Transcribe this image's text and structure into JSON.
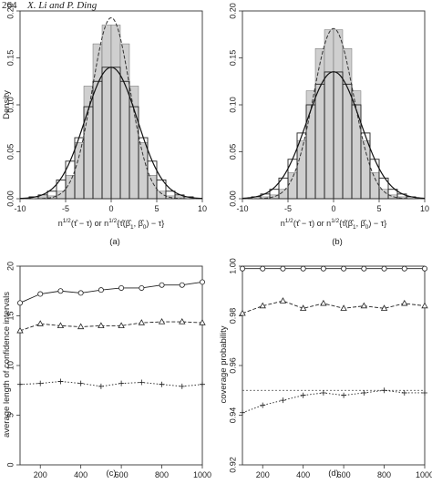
{
  "header": {
    "page_number": "264",
    "authors": "X. Li and P. Ding"
  },
  "chart_data": [
    {
      "id": "a",
      "type": "histogram",
      "panel_label": "(a)",
      "ylabel": "Density",
      "xlabel_parts": [
        "n",
        "1/2",
        "(τ̂ − τ) or n",
        "1/2",
        "{τ̂(β̂",
        "1",
        ", β̂",
        "0",
        ") − τ}"
      ],
      "xlim": [
        -10,
        10
      ],
      "ylim": [
        0,
        0.2
      ],
      "xticks": [
        -10,
        -5,
        0,
        5,
        10
      ],
      "yticks": [
        0.0,
        0.05,
        0.1,
        0.15,
        0.2
      ],
      "bins_edges": [
        -9,
        -8,
        -7,
        -6,
        -5,
        -4,
        -3,
        -2,
        -1,
        0,
        1,
        2,
        3,
        4,
        5,
        6,
        7,
        8,
        9
      ],
      "filled_hist": [
        0.0,
        0.002,
        0.003,
        0.008,
        0.025,
        0.06,
        0.12,
        0.165,
        0.185,
        0.185,
        0.165,
        0.12,
        0.06,
        0.025,
        0.008,
        0.003,
        0.002,
        0.0
      ],
      "open_hist": [
        0.002,
        0.004,
        0.008,
        0.02,
        0.04,
        0.065,
        0.098,
        0.125,
        0.14,
        0.14,
        0.125,
        0.098,
        0.065,
        0.04,
        0.02,
        0.008,
        0.004,
        0.002
      ],
      "solid_density_sd": 2.85,
      "dashed_density_sd": 2.07
    },
    {
      "id": "b",
      "type": "histogram",
      "panel_label": "(b)",
      "ylabel": "",
      "xlabel_parts": [
        "n",
        "1/2",
        "(τ̂ − τ) or n",
        "1/2",
        "{τ̂(β̂",
        "1",
        ", β̂",
        "0",
        ") − τ}"
      ],
      "xlim": [
        -10,
        10
      ],
      "ylim": [
        0,
        0.2
      ],
      "xticks": [
        -10,
        -5,
        0,
        5,
        10
      ],
      "yticks": [
        0.0,
        0.05,
        0.1,
        0.15,
        0.2
      ],
      "bins_edges": [
        -9,
        -8,
        -7,
        -6,
        -5,
        -4,
        -3,
        -2,
        -1,
        0,
        1,
        2,
        3,
        4,
        5,
        6,
        7,
        8,
        9
      ],
      "filled_hist": [
        0.0,
        0.002,
        0.004,
        0.01,
        0.028,
        0.062,
        0.115,
        0.16,
        0.18,
        0.18,
        0.16,
        0.115,
        0.062,
        0.028,
        0.01,
        0.004,
        0.002,
        0.0
      ],
      "open_hist": [
        0.002,
        0.005,
        0.01,
        0.022,
        0.042,
        0.07,
        0.1,
        0.122,
        0.135,
        0.135,
        0.122,
        0.1,
        0.07,
        0.042,
        0.022,
        0.01,
        0.005,
        0.002
      ],
      "solid_density_sd": 2.95,
      "dashed_density_sd": 2.2
    },
    {
      "id": "c",
      "type": "line",
      "panel_label": "(c)",
      "ylabel": "average length of confidence intervals",
      "xlabel": "n",
      "xlim": [
        100,
        1000
      ],
      "ylim": [
        0,
        20
      ],
      "xticks": [
        200,
        400,
        600,
        800,
        1000
      ],
      "yticks": [
        0,
        5,
        10,
        15,
        20
      ],
      "x": [
        100,
        200,
        300,
        400,
        500,
        600,
        700,
        800,
        900,
        1000
      ],
      "series": [
        {
          "marker": "circle",
          "line": "solid",
          "values": [
            16.3,
            17.2,
            17.5,
            17.3,
            17.6,
            17.8,
            17.8,
            18.1,
            18.1,
            18.4
          ]
        },
        {
          "marker": "triangle",
          "line": "dashed",
          "values": [
            13.5,
            14.2,
            14.0,
            13.9,
            14.0,
            14.0,
            14.3,
            14.4,
            14.4,
            14.3
          ]
        },
        {
          "marker": "plus",
          "line": "dotted",
          "values": [
            8.1,
            8.2,
            8.4,
            8.2,
            7.9,
            8.2,
            8.3,
            8.1,
            7.9,
            8.1
          ]
        }
      ]
    },
    {
      "id": "d",
      "type": "line",
      "panel_label": "(d)",
      "ylabel": "coverage probability",
      "xlabel": "n",
      "xlim": [
        100,
        1000
      ],
      "ylim": [
        0.92,
        1.0
      ],
      "xticks": [
        200,
        400,
        600,
        800,
        1000
      ],
      "yticks": [
        0.92,
        0.94,
        0.96,
        0.98,
        1.0
      ],
      "reference_line": 0.95,
      "x": [
        100,
        200,
        300,
        400,
        500,
        600,
        700,
        800,
        900,
        1000
      ],
      "series": [
        {
          "marker": "circle",
          "line": "solid",
          "values": [
            0.999,
            0.999,
            0.999,
            0.999,
            0.999,
            0.999,
            0.999,
            0.999,
            0.999,
            0.999
          ]
        },
        {
          "marker": "triangle",
          "line": "dashed",
          "values": [
            0.981,
            0.984,
            0.986,
            0.983,
            0.985,
            0.983,
            0.984,
            0.983,
            0.985,
            0.984
          ]
        },
        {
          "marker": "plus",
          "line": "dotted",
          "values": [
            0.941,
            0.944,
            0.946,
            0.948,
            0.949,
            0.948,
            0.949,
            0.95,
            0.949,
            0.949
          ]
        }
      ]
    }
  ]
}
